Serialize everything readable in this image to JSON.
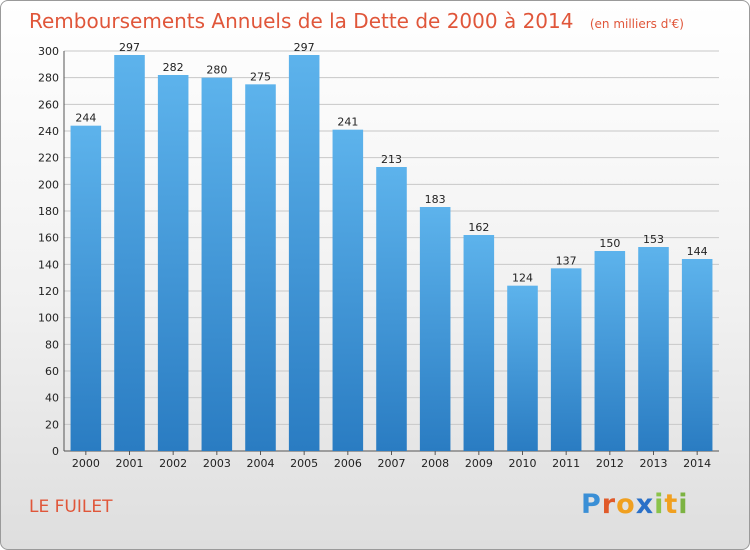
{
  "chart_data": {
    "type": "bar",
    "title": "Remboursements Annuels de la Dette de 2000 à 2014",
    "subtitle": "(en milliers d'€)",
    "categories": [
      "2000",
      "2001",
      "2002",
      "2003",
      "2004",
      "2005",
      "2006",
      "2007",
      "2008",
      "2009",
      "2010",
      "2011",
      "2012",
      "2013",
      "2014"
    ],
    "values": [
      244,
      297,
      282,
      280,
      275,
      297,
      241,
      213,
      183,
      162,
      124,
      137,
      150,
      153,
      144
    ],
    "ylim": [
      0,
      300
    ],
    "yticks": [
      0,
      20,
      40,
      60,
      80,
      100,
      120,
      140,
      160,
      180,
      200,
      220,
      240,
      260,
      280,
      300
    ],
    "grid": true,
    "bar_color": "#3f98dc"
  },
  "commune": "LE FUILET",
  "logo": {
    "letters": [
      {
        "ch": "P",
        "color": "#3a8fd6"
      },
      {
        "ch": "r",
        "color": "#e05a2a"
      },
      {
        "ch": "o",
        "color": "#f0a020"
      },
      {
        "ch": "x",
        "color": "#2a70c8"
      },
      {
        "ch": "i",
        "color": "#8bc34a"
      },
      {
        "ch": "t",
        "color": "#f0a020"
      },
      {
        "ch": "i",
        "color": "#7cb342"
      }
    ]
  }
}
